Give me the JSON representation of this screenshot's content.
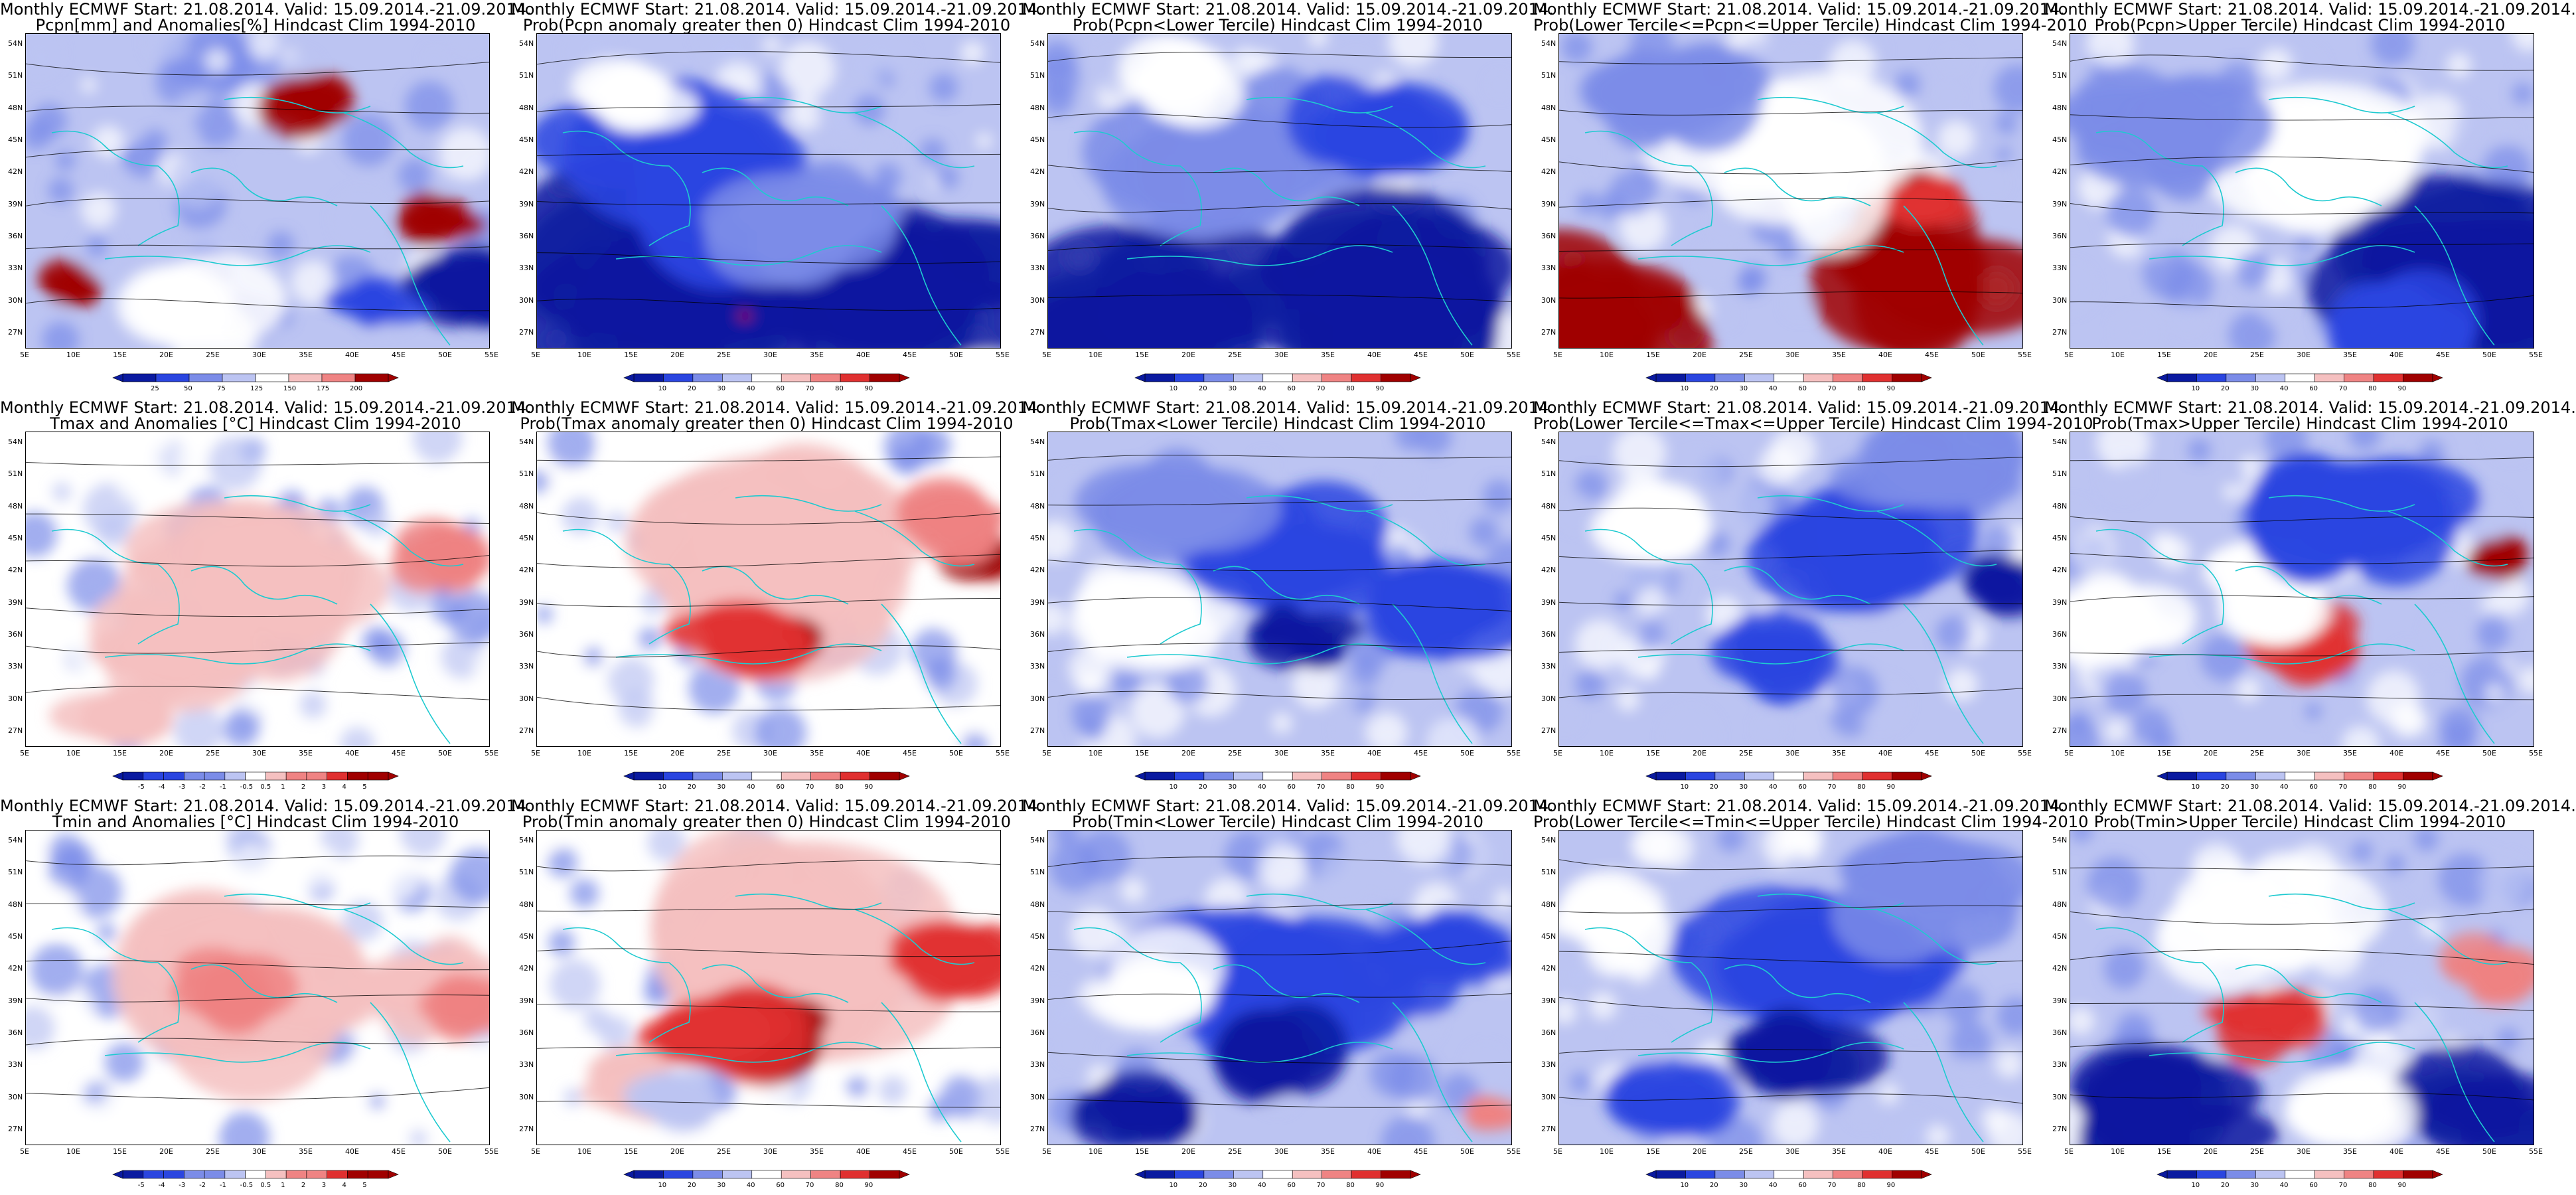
{
  "colors": {
    "blue_dark": "#0a1aa0",
    "blue": "#2a45e0",
    "blue_mid": "#7b8ce8",
    "blue_light": "#bcc4f2",
    "white": "#ffffff",
    "red_light": "#f5c0c0",
    "red_mid": "#ef8383",
    "red": "#e03030",
    "red_dark": "#a00000",
    "coast": "#1ecad0",
    "contour": "#000000"
  },
  "axes": {
    "lat_labels": [
      "54N",
      "51N",
      "48N",
      "45N",
      "42N",
      "39N",
      "36N",
      "33N",
      "30N",
      "27N"
    ],
    "lon_labels": [
      "5E",
      "10E",
      "15E",
      "20E",
      "25E",
      "30E",
      "35E",
      "40E",
      "45E",
      "50E",
      "55E"
    ]
  },
  "colorbars": {
    "pcpn_anom": [
      "25",
      "50",
      "75",
      "125",
      "150",
      "175",
      "200"
    ],
    "prob": [
      "10",
      "20",
      "30",
      "40",
      "60",
      "70",
      "80",
      "90"
    ],
    "temp_anom": [
      "-5",
      "-4",
      "-3",
      "-2",
      "-1",
      "-0.5",
      "0.5",
      "1",
      "2",
      "3",
      "4",
      "5"
    ]
  },
  "panels": [
    {
      "id": "p00",
      "line1": "Monthly ECMWF Start: 21.08.2014. Valid: 15.09.2014.-21.09.2014.",
      "line2": "Pcpn[mm] and Anomalies[%] Hindcast Clim 1994-2010",
      "cbar": "pcpn_anom"
    },
    {
      "id": "p01",
      "line1": "Monthly ECMWF Start: 21.08.2014. Valid: 15.09.2014.-21.09.2014.",
      "line2": "Prob(Pcpn anomaly greater then 0) Hindcast Clim 1994-2010",
      "cbar": "prob"
    },
    {
      "id": "p02",
      "line1": "Monthly ECMWF Start: 21.08.2014. Valid: 15.09.2014.-21.09.2014.",
      "line2": "Prob(Pcpn<Lower Tercile) Hindcast Clim 1994-2010",
      "cbar": "prob"
    },
    {
      "id": "p03",
      "line1": "Monthly ECMWF Start: 21.08.2014. Valid: 15.09.2014.-21.09.2014.",
      "line2": "Prob(Lower Tercile<=Pcpn<=Upper Tercile) Hindcast Clim 1994-2010",
      "cbar": "prob"
    },
    {
      "id": "p04",
      "line1": "Monthly ECMWF Start: 21.08.2014. Valid: 15.09.2014.-21.09.2014.",
      "line2": "Prob(Pcpn>Upper Tercile) Hindcast Clim 1994-2010",
      "cbar": "prob"
    },
    {
      "id": "p10",
      "line1": "Monthly ECMWF Start: 21.08.2014. Valid: 15.09.2014.-21.09.2014.",
      "line2": "Tmax and Anomalies [°C] Hindcast Clim 1994-2010",
      "cbar": "temp_anom"
    },
    {
      "id": "p11",
      "line1": "Monthly ECMWF Start: 21.08.2014. Valid: 15.09.2014.-21.09.2014.",
      "line2": "Prob(Tmax anomaly greater then 0) Hindcast Clim 1994-2010",
      "cbar": "prob"
    },
    {
      "id": "p12",
      "line1": "Monthly ECMWF Start: 21.08.2014. Valid: 15.09.2014.-21.09.2014.",
      "line2": "Prob(Tmax<Lower Tercile) Hindcast Clim 1994-2010",
      "cbar": "prob"
    },
    {
      "id": "p13",
      "line1": "Monthly ECMWF Start: 21.08.2014. Valid: 15.09.2014.-21.09.2014.",
      "line2": "Prob(Lower Tercile<=Tmax<=Upper Tercile) Hindcast Clim 1994-2010",
      "cbar": "prob"
    },
    {
      "id": "p14",
      "line1": "Monthly ECMWF Start: 21.08.2014. Valid: 15.09.2014.-21.09.2014.",
      "line2": "Prob(Tmax>Upper Tercile) Hindcast Clim 1994-2010",
      "cbar": "prob"
    },
    {
      "id": "p20",
      "line1": "Monthly ECMWF Start: 21.08.2014. Valid: 15.09.2014.-21.09.2014.",
      "line2": "Tmin and Anomalies [°C] Hindcast Clim 1994-2010",
      "cbar": "temp_anom"
    },
    {
      "id": "p21",
      "line1": "Monthly ECMWF Start: 21.08.2014. Valid: 15.09.2014.-21.09.2014.",
      "line2": "Prob(Tmin anomaly greater then 0) Hindcast Clim 1994-2010",
      "cbar": "prob"
    },
    {
      "id": "p22",
      "line1": "Monthly ECMWF Start: 21.08.2014. Valid: 15.09.2014.-21.09.2014.",
      "line2": "Prob(Tmin<Lower Tercile) Hindcast Clim 1994-2010",
      "cbar": "prob"
    },
    {
      "id": "p23",
      "line1": "Monthly ECMWF Start: 21.08.2014. Valid: 15.09.2014.-21.09.2014.",
      "line2": "Prob(Lower Tercile<=Tmin<=Upper Tercile) Hindcast Clim 1994-2010",
      "cbar": "prob"
    },
    {
      "id": "p24",
      "line1": "Monthly ECMWF Start: 21.08.2014. Valid: 15.09.2014.-21.09.2014.",
      "line2": "Prob(Tmin>Upper Tercile) Hindcast Clim 1994-2010",
      "cbar": "prob"
    }
  ]
}
